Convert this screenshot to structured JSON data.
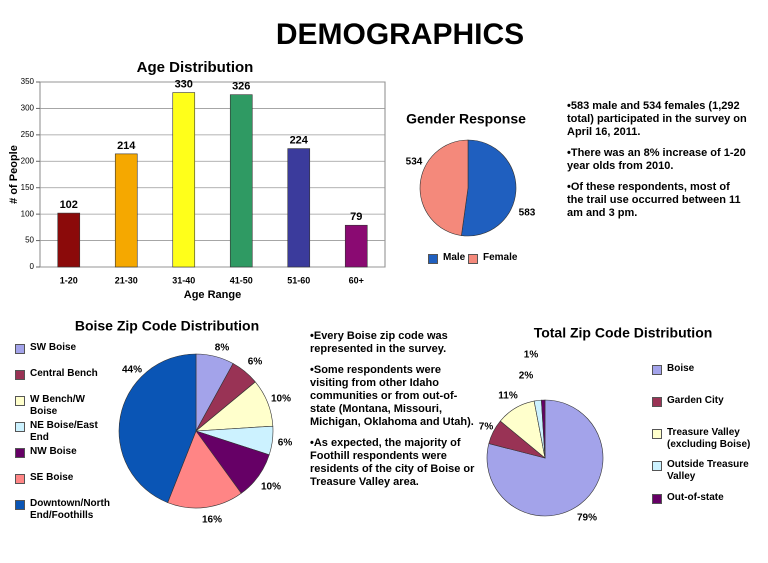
{
  "title": "DEMOGRAPHICS",
  "chart_data": [
    {
      "type": "bar",
      "title": "Age Distribution",
      "x_label": "Age Range",
      "y_label": "# of People",
      "categories": [
        "1-20",
        "21-30",
        "31-40",
        "41-50",
        "51-60",
        "60+"
      ],
      "values": [
        102,
        214,
        330,
        326,
        224,
        79
      ],
      "colors": [
        "#8b0a0a",
        "#f5a800",
        "#ffff1a",
        "#2f9a63",
        "#3b3b9c",
        "#8a0a72"
      ],
      "ylim": [
        0,
        350
      ],
      "yticks": [
        0,
        50,
        100,
        150,
        200,
        250,
        300,
        350
      ],
      "grid": true
    },
    {
      "type": "pie",
      "title": "Gender Response",
      "categories": [
        "Male",
        "Female"
      ],
      "values": [
        583,
        534
      ],
      "colors": [
        "#1f5fbf",
        "#f4897b"
      ]
    },
    {
      "type": "pie",
      "title": "Boise Zip Code Distribution",
      "categories": [
        "SW Boise",
        "Central Bench",
        "W Bench/W Boise",
        "NE Boise/East End",
        "NW Boise",
        "SE Boise",
        "Downtown/North End/Foothills"
      ],
      "values": [
        8,
        6,
        10,
        6,
        10,
        16,
        44
      ],
      "value_labels": [
        "8%",
        "6%",
        "10%",
        "6%",
        "10%",
        "16%",
        "44%"
      ],
      "colors": [
        "#a3a3ea",
        "#993355",
        "#ffffcc",
        "#ccf2ff",
        "#660066",
        "#ff8585",
        "#0a55b5"
      ]
    },
    {
      "type": "pie",
      "title": "Total Zip Code Distribution",
      "categories": [
        "Boise",
        "Garden City",
        "Treasure Valley (excluding Boise)",
        "Outside Treasure Valley",
        "Out-of-state"
      ],
      "values": [
        79,
        7,
        11,
        2,
        1
      ],
      "value_labels": [
        "79%",
        "7%",
        "11%",
        "2%",
        "1%"
      ],
      "colors": [
        "#a3a3ea",
        "#993355",
        "#ffffcc",
        "#ccf2ff",
        "#660066"
      ]
    }
  ],
  "notes": {
    "gender": [
      "•583 male and 534 females (1,292 total) participated in the survey on April 16, 2011.",
      "•There was an 8% increase of 1-20 year olds from 2010.",
      "•Of these respondents, most of the  trail use occurred between 11 am and 3 pm."
    ],
    "zip": [
      "•Every Boise zip code was represented in the survey.",
      "•Some respondents were visiting from other Idaho communities or from out-of-state (Montana, Missouri, Michigan, Oklahoma and Utah).",
      "•As expected, the majority of Foothill respondents were residents of the city of Boise or Treasure Valley area."
    ]
  }
}
